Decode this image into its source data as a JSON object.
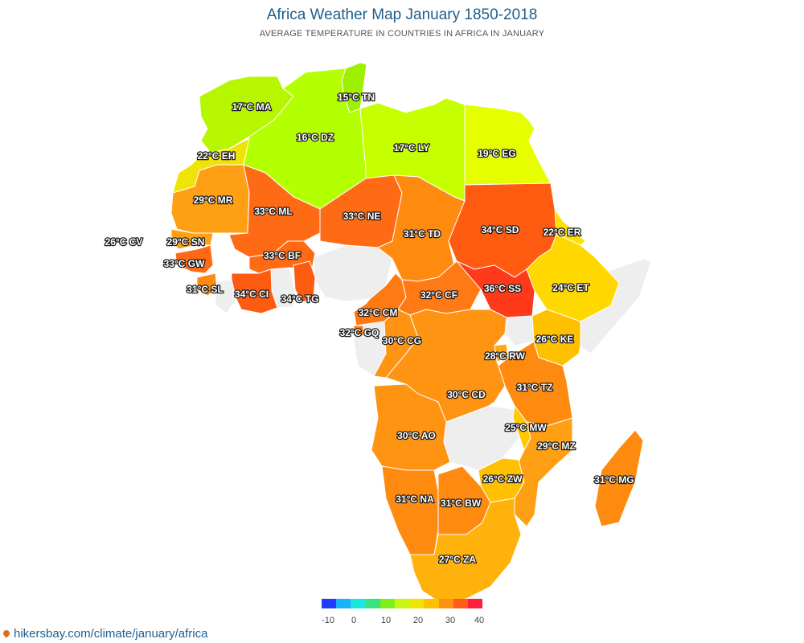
{
  "title": "Africa Weather Map January 1850-2018",
  "subtitle": "AVERAGE TEMPERATURE IN COUNTRIES IN AFRICA IN JANUARY",
  "footer": "hikersbay.com/climate/january/africa",
  "legend": {
    "colors": [
      "#1e3cff",
      "#19b2ff",
      "#18e8e0",
      "#3ae37a",
      "#7df01b",
      "#c7f514",
      "#f0e406",
      "#ffc000",
      "#ff9012",
      "#ff5b19",
      "#ff1f3a"
    ],
    "ticks": [
      "-10",
      "0",
      "10",
      "20",
      "30",
      "40"
    ]
  },
  "countries": [
    {
      "code": "MA",
      "label": "17°C MA",
      "temp": 17,
      "color": "#b6f700"
    },
    {
      "code": "TN",
      "label": "15°C TN",
      "temp": 15,
      "color": "#9ff000"
    },
    {
      "code": "DZ",
      "label": "16°C DZ",
      "temp": 16,
      "color": "#b4ff00"
    },
    {
      "code": "LY",
      "label": "17°C LY",
      "temp": 17,
      "color": "#c6ff00"
    },
    {
      "code": "EG",
      "label": "19°C EG",
      "temp": 19,
      "color": "#e6ff00"
    },
    {
      "code": "EH",
      "label": "22°C EH",
      "temp": 22,
      "color": "#f0e406"
    },
    {
      "code": "MR",
      "label": "29°C MR",
      "temp": 29,
      "color": "#ff9f14"
    },
    {
      "code": "ML",
      "label": "33°C ML",
      "temp": 33,
      "color": "#ff6a14"
    },
    {
      "code": "NE",
      "label": "33°C NE",
      "temp": 33,
      "color": "#ff6a14"
    },
    {
      "code": "TD",
      "label": "31°C TD",
      "temp": 31,
      "color": "#ff8a10"
    },
    {
      "code": "SD",
      "label": "34°C SD",
      "temp": 34,
      "color": "#ff5b10"
    },
    {
      "code": "ER",
      "label": "22°C ER",
      "temp": 22,
      "color": "#ffe000"
    },
    {
      "code": "CV",
      "label": "26°C CV",
      "temp": 26,
      "color": "#ffc000"
    },
    {
      "code": "SN",
      "label": "29°C SN",
      "temp": 29,
      "color": "#ffa014"
    },
    {
      "code": "GW",
      "label": "33°C GW",
      "temp": 33,
      "color": "#ff6a14"
    },
    {
      "code": "BF",
      "label": "33°C BF",
      "temp": 33,
      "color": "#ff6a14"
    },
    {
      "code": "SL",
      "label": "31°C SL",
      "temp": 31,
      "color": "#ff8a10"
    },
    {
      "code": "CI",
      "label": "34°C CI",
      "temp": 34,
      "color": "#ff5b10"
    },
    {
      "code": "TG",
      "label": "34°C TG",
      "temp": 34,
      "color": "#ff5b10"
    },
    {
      "code": "CM",
      "label": "32°C CM",
      "temp": 32,
      "color": "#ff7a12"
    },
    {
      "code": "CF",
      "label": "32°C CF",
      "temp": 32,
      "color": "#ff7a12"
    },
    {
      "code": "SS",
      "label": "36°C SS",
      "temp": 36,
      "color": "#ff3a1a"
    },
    {
      "code": "ET",
      "label": "24°C ET",
      "temp": 24,
      "color": "#ffd800"
    },
    {
      "code": "GQ",
      "label": "32°C GQ",
      "temp": 32,
      "color": "#ff7a12"
    },
    {
      "code": "CG",
      "label": "30°C CG",
      "temp": 30,
      "color": "#ff9412"
    },
    {
      "code": "KE",
      "label": "26°C KE",
      "temp": 26,
      "color": "#ffc000"
    },
    {
      "code": "RW",
      "label": "28°C RW",
      "temp": 28,
      "color": "#ffa614"
    },
    {
      "code": "TZ",
      "label": "31°C TZ",
      "temp": 31,
      "color": "#ff8a10"
    },
    {
      "code": "CD",
      "label": "30°C CD",
      "temp": 30,
      "color": "#ff9412"
    },
    {
      "code": "MW",
      "label": "25°C MW",
      "temp": 25,
      "color": "#ffc800"
    },
    {
      "code": "AO",
      "label": "30°C AO",
      "temp": 30,
      "color": "#ff9412"
    },
    {
      "code": "MZ",
      "label": "29°C MZ",
      "temp": 29,
      "color": "#ffa014"
    },
    {
      "code": "MG",
      "label": "31°C MG",
      "temp": 31,
      "color": "#ff8a10"
    },
    {
      "code": "ZW",
      "label": "26°C ZW",
      "temp": 26,
      "color": "#ffc000"
    },
    {
      "code": "NA",
      "label": "31°C NA",
      "temp": 31,
      "color": "#ff8a10"
    },
    {
      "code": "BW",
      "label": "31°C BW",
      "temp": 31,
      "color": "#ff8a10"
    },
    {
      "code": "ZA",
      "label": "27°C ZA",
      "temp": 27,
      "color": "#ffb20c"
    }
  ]
}
